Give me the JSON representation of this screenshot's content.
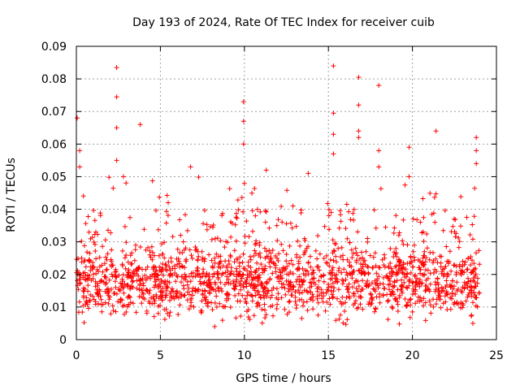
{
  "chart_data": {
    "type": "scatter",
    "title": "Day 193 of 2024, Rate Of TEC Index for receiver cuib",
    "xlabel": "GPS time / hours",
    "ylabel": "ROTI / TECUs",
    "xlim": [
      0,
      25
    ],
    "ylim": [
      0,
      0.09
    ],
    "xticks": [
      0,
      5,
      10,
      15,
      20,
      25
    ],
    "xtick_labels": [
      "0",
      "5",
      "10",
      "15",
      "20",
      "25"
    ],
    "yticks": [
      0,
      0.01,
      0.02,
      0.03,
      0.04,
      0.05,
      0.06,
      0.07,
      0.08,
      0.09
    ],
    "ytick_labels": [
      "0",
      "0.01",
      "0.02",
      "0.03",
      "0.04",
      "0.05",
      "0.06",
      "0.07",
      "0.08",
      "0.09"
    ],
    "grid": true,
    "marker": "+",
    "marker_color": "#ff0000",
    "data_range_x": [
      0,
      24
    ],
    "density_note": "dense band 0.005-0.03 with sparse spikes",
    "notable_points": [
      {
        "x": 0.05,
        "y": 0.068
      },
      {
        "x": 0.2,
        "y": 0.058
      },
      {
        "x": 0.2,
        "y": 0.053
      },
      {
        "x": 2.4,
        "y": 0.0835
      },
      {
        "x": 2.4,
        "y": 0.0745
      },
      {
        "x": 2.4,
        "y": 0.065
      },
      {
        "x": 2.4,
        "y": 0.055
      },
      {
        "x": 2.8,
        "y": 0.05
      },
      {
        "x": 3.8,
        "y": 0.066
      },
      {
        "x": 6.8,
        "y": 0.053
      },
      {
        "x": 9.95,
        "y": 0.073
      },
      {
        "x": 9.95,
        "y": 0.067
      },
      {
        "x": 9.95,
        "y": 0.06
      },
      {
        "x": 11.3,
        "y": 0.052
      },
      {
        "x": 13.8,
        "y": 0.051
      },
      {
        "x": 15.3,
        "y": 0.084
      },
      {
        "x": 15.3,
        "y": 0.0695
      },
      {
        "x": 15.3,
        "y": 0.063
      },
      {
        "x": 15.3,
        "y": 0.057
      },
      {
        "x": 16.8,
        "y": 0.0805
      },
      {
        "x": 16.8,
        "y": 0.072
      },
      {
        "x": 16.8,
        "y": 0.064
      },
      {
        "x": 16.8,
        "y": 0.062
      },
      {
        "x": 18.0,
        "y": 0.078
      },
      {
        "x": 18.0,
        "y": 0.058
      },
      {
        "x": 18.0,
        "y": 0.053
      },
      {
        "x": 19.8,
        "y": 0.059
      },
      {
        "x": 19.8,
        "y": 0.05
      },
      {
        "x": 21.4,
        "y": 0.064
      },
      {
        "x": 23.8,
        "y": 0.062
      },
      {
        "x": 23.8,
        "y": 0.058
      },
      {
        "x": 23.8,
        "y": 0.054
      }
    ]
  }
}
